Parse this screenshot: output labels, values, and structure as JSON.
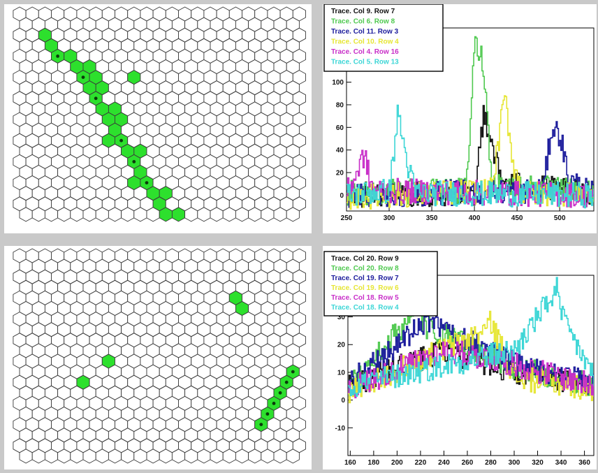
{
  "chart_data": [
    {
      "type": "heatmap",
      "grid": {
        "rows": 20,
        "cols": 23,
        "layout": "hexagonal"
      },
      "cell_color": "#ffffff",
      "hit_color": "#2de02d",
      "dot_color": "#0b3a0b",
      "hits": [
        [
          2,
          2
        ],
        [
          3,
          2
        ],
        [
          4,
          3
        ],
        [
          4,
          4
        ],
        [
          5,
          4
        ],
        [
          5,
          5
        ],
        [
          6,
          5
        ],
        [
          7,
          5
        ],
        [
          6,
          6
        ],
        [
          7,
          6
        ],
        [
          8,
          6
        ],
        [
          9,
          6
        ],
        [
          6,
          9
        ],
        [
          9,
          7
        ],
        [
          10,
          7
        ],
        [
          11,
          7
        ],
        [
          12,
          7
        ],
        [
          10,
          8
        ],
        [
          12,
          8
        ],
        [
          13,
          8
        ],
        [
          13,
          9
        ],
        [
          14,
          9
        ],
        [
          15,
          9
        ],
        [
          16,
          9
        ],
        [
          16,
          10
        ],
        [
          17,
          10
        ],
        [
          17,
          11
        ],
        [
          18,
          11
        ],
        [
          19,
          11
        ],
        [
          19,
          12
        ]
      ],
      "dots": [
        [
          4,
          3
        ],
        [
          6,
          5
        ],
        [
          8,
          6
        ],
        [
          12,
          8
        ],
        [
          14,
          9
        ],
        [
          16,
          10
        ]
      ]
    },
    {
      "type": "line",
      "legend": [
        {
          "label": "Trace. Col 9. Row 7",
          "color": "#111111"
        },
        {
          "label": "Trace. Col 6. Row 8",
          "color": "#4fc94f"
        },
        {
          "label": "Trace. Col 11. Row 3",
          "color": "#1c1c9c"
        },
        {
          "label": "Trace. Col 10. Row 4",
          "color": "#e6e634"
        },
        {
          "label": "Trace. Col 4. Row 16",
          "color": "#c82ec8"
        },
        {
          "label": "Trace. Col 5. Row 13",
          "color": "#3dd6d6"
        }
      ],
      "x_ticks": [
        "250",
        "300",
        "350",
        "400",
        "450",
        "500"
      ],
      "y_ticks": [
        "100",
        "80",
        "60",
        "40",
        "20",
        "0"
      ],
      "xlim": [
        250,
        540
      ],
      "ylim": [
        -14,
        148
      ],
      "series": [
        {
          "values": [
            [
              250,
              0
            ],
            [
              400,
              2
            ],
            [
              410,
              70
            ],
            [
              420,
              48
            ],
            [
              430,
              12
            ],
            [
              540,
              0
            ]
          ]
        },
        {
          "values": [
            [
              250,
              2
            ],
            [
              390,
              4
            ],
            [
              400,
              135
            ],
            [
              410,
              118
            ],
            [
              420,
              10
            ],
            [
              540,
              2
            ]
          ]
        },
        {
          "values": [
            [
              250,
              0
            ],
            [
              480,
              4
            ],
            [
              490,
              60
            ],
            [
              500,
              54
            ],
            [
              510,
              14
            ],
            [
              540,
              0
            ]
          ]
        },
        {
          "values": [
            [
              250,
              -2
            ],
            [
              420,
              4
            ],
            [
              435,
              88
            ],
            [
              445,
              28
            ],
            [
              455,
              2
            ],
            [
              540,
              0
            ]
          ]
        },
        {
          "values": [
            [
              250,
              2
            ],
            [
              262,
              20
            ],
            [
              270,
              36
            ],
            [
              280,
              4
            ],
            [
              540,
              0
            ]
          ]
        },
        {
          "values": [
            [
              250,
              0
            ],
            [
              300,
              4
            ],
            [
              310,
              74
            ],
            [
              320,
              30
            ],
            [
              330,
              2
            ],
            [
              540,
              0
            ]
          ]
        }
      ]
    },
    {
      "type": "heatmap",
      "grid": {
        "rows": 20,
        "cols": 23,
        "layout": "hexagonal"
      },
      "cell_color": "#ffffff",
      "hit_color": "#2de02d",
      "dot_color": "#0b3a0b",
      "hits": [
        [
          4,
          17
        ],
        [
          5,
          17
        ],
        [
          10,
          7
        ],
        [
          12,
          5
        ],
        [
          11,
          21
        ],
        [
          12,
          21
        ],
        [
          13,
          20
        ],
        [
          14,
          20
        ],
        [
          15,
          19
        ],
        [
          16,
          19
        ]
      ],
      "dots": [
        [
          11,
          21
        ],
        [
          12,
          21
        ],
        [
          13,
          20
        ],
        [
          14,
          20
        ],
        [
          15,
          19
        ],
        [
          16,
          19
        ]
      ]
    },
    {
      "type": "line",
      "legend": [
        {
          "label": "Trace. Col 20. Row 9",
          "color": "#111111"
        },
        {
          "label": "Trace. Col 20. Row 8",
          "color": "#4fc94f"
        },
        {
          "label": "Trace. Col 19. Row 7",
          "color": "#1c1c9c"
        },
        {
          "label": "Trace. Col 19. Row 6",
          "color": "#e6e634"
        },
        {
          "label": "Trace. Col 18. Row 5",
          "color": "#c82ec8"
        },
        {
          "label": "Trace. Col 18. Row 4",
          "color": "#3dd6d6"
        }
      ],
      "x_ticks": [
        "160",
        "180",
        "200",
        "220",
        "240",
        "260",
        "280",
        "300",
        "320",
        "340",
        "360"
      ],
      "y_ticks": [
        "30",
        "20",
        "10",
        "0",
        "-10"
      ],
      "xlim": [
        158,
        368
      ],
      "ylim": [
        -20,
        45
      ],
      "series": [
        {
          "values": [
            [
              158,
              5
            ],
            [
              240,
              18
            ],
            [
              300,
              10
            ],
            [
              368,
              6
            ]
          ]
        },
        {
          "values": [
            [
              158,
              4
            ],
            [
              215,
              32
            ],
            [
              225,
              26
            ],
            [
              300,
              12
            ],
            [
              368,
              5
            ]
          ]
        },
        {
          "values": [
            [
              158,
              6
            ],
            [
              230,
              30
            ],
            [
              240,
              25
            ],
            [
              320,
              10
            ],
            [
              368,
              6
            ]
          ]
        },
        {
          "values": [
            [
              158,
              3
            ],
            [
              270,
              24
            ],
            [
              280,
              28
            ],
            [
              300,
              8
            ],
            [
              368,
              4
            ]
          ]
        },
        {
          "values": [
            [
              158,
              4
            ],
            [
              240,
              18
            ],
            [
              290,
              14
            ],
            [
              368,
              5
            ]
          ]
        },
        {
          "values": [
            [
              158,
              5
            ],
            [
              300,
              18
            ],
            [
              336,
              40
            ],
            [
              340,
              30
            ],
            [
              368,
              8
            ]
          ]
        }
      ]
    }
  ]
}
